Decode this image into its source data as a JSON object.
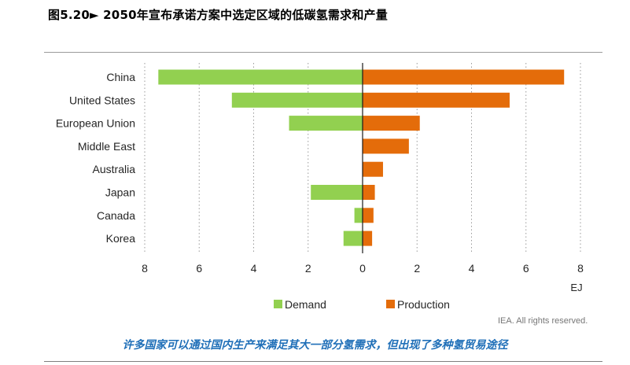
{
  "figure_title": "图5.20► 2050年宣布承诺方案中选定区域的低碳氢需求和产量",
  "caption": "许多国家可以通过国内生产来满足其大一部分氢需求，但出现了多种氢贸易途径",
  "credit": "IEA. All rights reserved.",
  "chart_data": {
    "type": "bar",
    "orientation": "horizontal-butterfly",
    "title": "",
    "categories": [
      "China",
      "United States",
      "European Union",
      "Middle East",
      "Australia",
      "Japan",
      "Canada",
      "Korea"
    ],
    "series": [
      {
        "name": "Demand",
        "color": "#92d050",
        "direction": "left",
        "values": [
          7.5,
          4.8,
          2.7,
          0,
          0,
          1.9,
          0.3,
          0.7
        ]
      },
      {
        "name": "Production",
        "color": "#e46c0a",
        "direction": "right",
        "values": [
          7.4,
          5.4,
          2.1,
          1.7,
          0.75,
          0.45,
          0.4,
          0.35
        ]
      }
    ],
    "xlim": [
      -8,
      8
    ],
    "x_tick_values": [
      -8,
      -6,
      -4,
      -2,
      0,
      2,
      4,
      6,
      8
    ],
    "x_tick_labels": [
      "8",
      "6",
      "4",
      "2",
      "0",
      "2",
      "4",
      "6",
      "8"
    ],
    "xlabel": "EJ",
    "grid": "vertical dotted",
    "legend_position": "bottom"
  }
}
